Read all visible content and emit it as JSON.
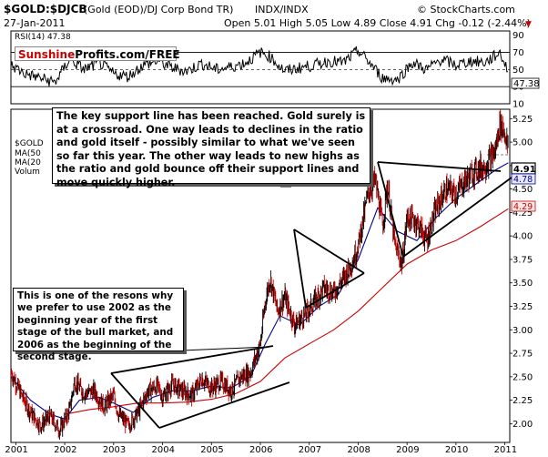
{
  "header": {
    "symbol": "$GOLD:$DJCB",
    "description": "(Gold (EOD)/DJ Corp Bond TR)",
    "exchange": "INDX/INDX",
    "date": "27-Jan-2011",
    "quote": "Open 5.01  High 5.05  Low 4.89  Close 4.91  Chg -0.12 (-2.44%)",
    "quote_arrow": "▼",
    "watermark": "© StockCharts.com"
  },
  "branding": {
    "brand_a": "Sunshine",
    "brand_b": "Profits.com/FREE",
    "colors": {
      "brand_a": "#cc0000",
      "brand_b": "#000000"
    }
  },
  "rsi_panel": {
    "label": "RSI(14) 47.38",
    "value": "47.38",
    "axis_ticks": [
      "90",
      "70",
      "50",
      "30",
      "10"
    ]
  },
  "legend": {
    "items": [
      {
        "label": "$GOLD",
        "color": "#000000"
      },
      {
        "label": "MA(50",
        "color": "#0000aa"
      },
      {
        "label": "MA(20",
        "color": "#cc0000"
      },
      {
        "label": "Volum",
        "color": "#888888"
      }
    ]
  },
  "price_badges": {
    "close": "4.91",
    "ma50": "4.78",
    "ma200": "4.29"
  },
  "annotations": {
    "top_text": "The key support line has been reached. Gold surely is at a crossroad. One way leads to declines in the ratio and gold itself - possibly similar to what we've seen so far this year. The other way leads to new highs as the ratio and gold bounce off their support lines and move quickly higher.",
    "left_text": "This is one of the resons why we prefer to use 2002 as the beginning year of the first stage of the bull market, and 2006 as the beginning of the second stage."
  },
  "colors": {
    "price_up": "#000000",
    "price_down": "#cc0000",
    "ma50": "#00008b",
    "ma200": "#cc0000",
    "rsi": "#000000"
  },
  "chart_data": {
    "type": "line",
    "title": "$GOLD:$DJCB (Gold (EOD)/DJ Corp Bond TR)",
    "x_ticks": [
      "2001",
      "2002",
      "2003",
      "2004",
      "2005",
      "2006",
      "2007",
      "2008",
      "2009",
      "2010",
      "2011"
    ],
    "y_ticks": [
      "2.00",
      "2.25",
      "2.50",
      "2.75",
      "3.00",
      "3.25",
      "3.50",
      "3.75",
      "4.00",
      "4.25",
      "4.50",
      "4.75",
      "5.00",
      "5.25"
    ],
    "ylim": [
      1.8,
      5.35
    ],
    "xlim": [
      2000.9,
      2011.1
    ],
    "series": [
      {
        "name": "$GOLD",
        "x": [
          2000.9,
          2001.1,
          2001.3,
          2001.5,
          2001.7,
          2001.9,
          2002.1,
          2002.2,
          2002.4,
          2002.6,
          2002.8,
          2003.0,
          2003.1,
          2003.3,
          2003.5,
          2003.7,
          2003.9,
          2004.0,
          2004.2,
          2004.4,
          2004.6,
          2004.8,
          2005.0,
          2005.2,
          2005.4,
          2005.6,
          2005.8,
          2006.0,
          2006.1,
          2006.2,
          2006.35,
          2006.5,
          2006.7,
          2006.9,
          2007.1,
          2007.3,
          2007.5,
          2007.7,
          2007.9,
          2008.0,
          2008.2,
          2008.35,
          2008.5,
          2008.6,
          2008.75,
          2008.9,
          2009.0,
          2009.2,
          2009.4,
          2009.6,
          2009.8,
          2010.0,
          2010.2,
          2010.4,
          2010.6,
          2010.8,
          2010.9,
          2011.0,
          2011.07
        ],
        "values": [
          2.55,
          2.32,
          2.12,
          1.98,
          2.08,
          1.93,
          2.15,
          2.45,
          2.32,
          2.35,
          2.18,
          2.3,
          2.1,
          1.98,
          2.12,
          2.35,
          2.4,
          2.28,
          2.42,
          2.35,
          2.3,
          2.48,
          2.38,
          2.45,
          2.35,
          2.5,
          2.55,
          2.85,
          3.3,
          3.55,
          3.2,
          3.35,
          3.05,
          3.15,
          3.3,
          3.45,
          3.4,
          3.55,
          3.75,
          3.9,
          4.45,
          4.6,
          4.1,
          4.55,
          3.9,
          3.7,
          4.2,
          4.15,
          3.95,
          4.3,
          4.5,
          4.45,
          4.6,
          4.7,
          4.75,
          4.9,
          5.2,
          5.1,
          4.91
        ]
      },
      {
        "name": "MA(50)",
        "x": [
          2000.9,
          2001.3,
          2001.7,
          2002.0,
          2002.3,
          2002.7,
          2003.0,
          2003.4,
          2003.8,
          2004.2,
          2004.6,
          2005.0,
          2005.4,
          2005.8,
          2006.1,
          2006.4,
          2006.8,
          2007.2,
          2007.6,
          2008.0,
          2008.4,
          2008.8,
          2009.2,
          2009.6,
          2010.0,
          2010.4,
          2010.8,
          2011.07
        ],
        "values": [
          2.5,
          2.25,
          2.1,
          2.05,
          2.25,
          2.28,
          2.22,
          2.12,
          2.28,
          2.35,
          2.35,
          2.4,
          2.38,
          2.5,
          2.85,
          3.15,
          3.05,
          3.25,
          3.38,
          3.75,
          4.3,
          4.05,
          3.95,
          4.2,
          4.4,
          4.55,
          4.7,
          4.78
        ]
      },
      {
        "name": "MA(200)",
        "x": [
          2002.0,
          2002.5,
          2003.0,
          2003.5,
          2004.0,
          2004.5,
          2005.0,
          2005.5,
          2006.0,
          2006.5,
          2007.0,
          2007.5,
          2008.0,
          2008.5,
          2009.0,
          2009.5,
          2010.0,
          2010.5,
          2011.07
        ],
        "values": [
          2.1,
          2.15,
          2.18,
          2.22,
          2.22,
          2.23,
          2.26,
          2.32,
          2.45,
          2.7,
          2.85,
          3.0,
          3.2,
          3.45,
          3.7,
          3.85,
          3.95,
          4.1,
          4.29
        ]
      }
    ],
    "rsi": {
      "x": [
        2000.9,
        2001.2,
        2001.5,
        2001.8,
        2002.1,
        2002.4,
        2002.7,
        2003.0,
        2003.3,
        2003.6,
        2003.9,
        2004.2,
        2004.5,
        2004.8,
        2005.1,
        2005.4,
        2005.7,
        2006.0,
        2006.2,
        2006.5,
        2006.8,
        2007.1,
        2007.4,
        2007.7,
        2008.0,
        2008.2,
        2008.5,
        2008.8,
        2009.1,
        2009.4,
        2009.7,
        2010.0,
        2010.3,
        2010.6,
        2010.9,
        2011.07
      ],
      "values": [
        55,
        45,
        40,
        35,
        62,
        50,
        58,
        45,
        42,
        55,
        60,
        52,
        48,
        57,
        50,
        53,
        58,
        70,
        65,
        48,
        52,
        55,
        60,
        58,
        72,
        60,
        40,
        38,
        58,
        50,
        62,
        55,
        60,
        58,
        70,
        47.38
      ],
      "ylim": [
        10,
        95
      ],
      "ticks": [
        90,
        70,
        50,
        30,
        10
      ]
    }
  }
}
